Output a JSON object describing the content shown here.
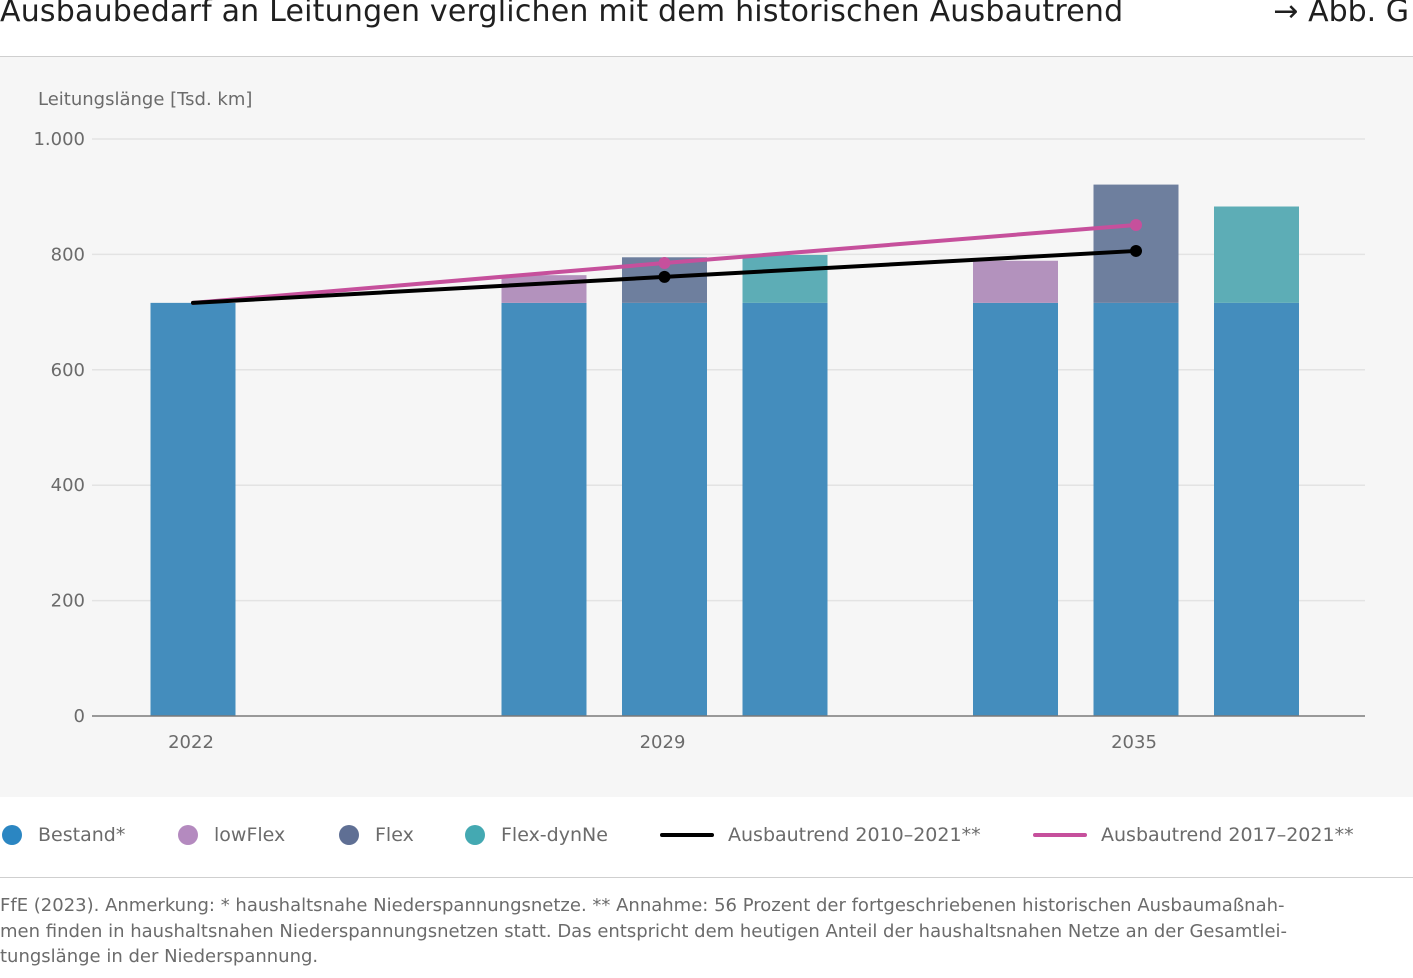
{
  "header": {
    "title": "Ausbaubedarf an Leitungen verglichen mit dem historischen Ausbautrend",
    "figure_ref": "→ Abb. G"
  },
  "chart_data": {
    "type": "bar",
    "stacked": true,
    "ylabel": "Leitungslänge [Tsd. km]",
    "ylim": [
      0,
      1000
    ],
    "yticks": [
      0,
      200,
      400,
      600,
      800,
      1000
    ],
    "ytick_labels": [
      "0",
      "200",
      "400",
      "600",
      "800",
      "1.000"
    ],
    "grid": true,
    "x_labels": [
      "2022",
      "2029",
      "2035"
    ],
    "groups": [
      {
        "label": "2022",
        "bars": [
          {
            "Bestand*": 716
          }
        ]
      },
      {
        "label": "2029",
        "bars": [
          {
            "Bestand*": 716,
            "lowFlex": 48
          },
          {
            "Bestand*": 716,
            "Flex": 79
          },
          {
            "Bestand*": 716,
            "Flex-dynNe": 83
          }
        ]
      },
      {
        "label": "2035",
        "bars": [
          {
            "Bestand*": 716,
            "lowFlex": 73
          },
          {
            "Bestand*": 716,
            "Flex": 205
          },
          {
            "Bestand*": 716,
            "Flex-dynNe": 167
          }
        ]
      }
    ],
    "series": [
      {
        "name": "Bestand*",
        "color": "#448dbd",
        "legend_color": "#2b86c2"
      },
      {
        "name": "lowFlex",
        "color": "#b392bd",
        "legend_color": "#b48abf"
      },
      {
        "name": "Flex",
        "color": "#6e7f9e",
        "legend_color": "#5f6f94"
      },
      {
        "name": "Flex-dynNe",
        "color": "#5dadb6",
        "legend_color": "#44a9b2"
      }
    ],
    "lines": [
      {
        "name": "Ausbautrend 2010–2021**",
        "color": "#000000",
        "x": [
          "2022",
          "2029",
          "2035"
        ],
        "values": [
          716,
          761,
          806
        ]
      },
      {
        "name": "Ausbautrend 2017–2021**",
        "color": "#c6509c",
        "x": [
          "2022",
          "2029",
          "2035"
        ],
        "values": [
          716,
          785,
          851
        ]
      }
    ],
    "legend_position": "bottom"
  },
  "footnote": {
    "lines": [
      "FfE (2023). Anmerkung: * haushaltsnahe Niederspannungsnetze. ** Annahme: 56 Prozent der fortgeschriebenen historischen Ausbaumaßnah-",
      "men finden in haushaltsnahen Niederspannungsnetzen statt. Das entspricht dem heutigen Anteil der haushaltsnahen Netze an der Gesamtlei-",
      "tungslänge in der Niederspannung."
    ]
  }
}
